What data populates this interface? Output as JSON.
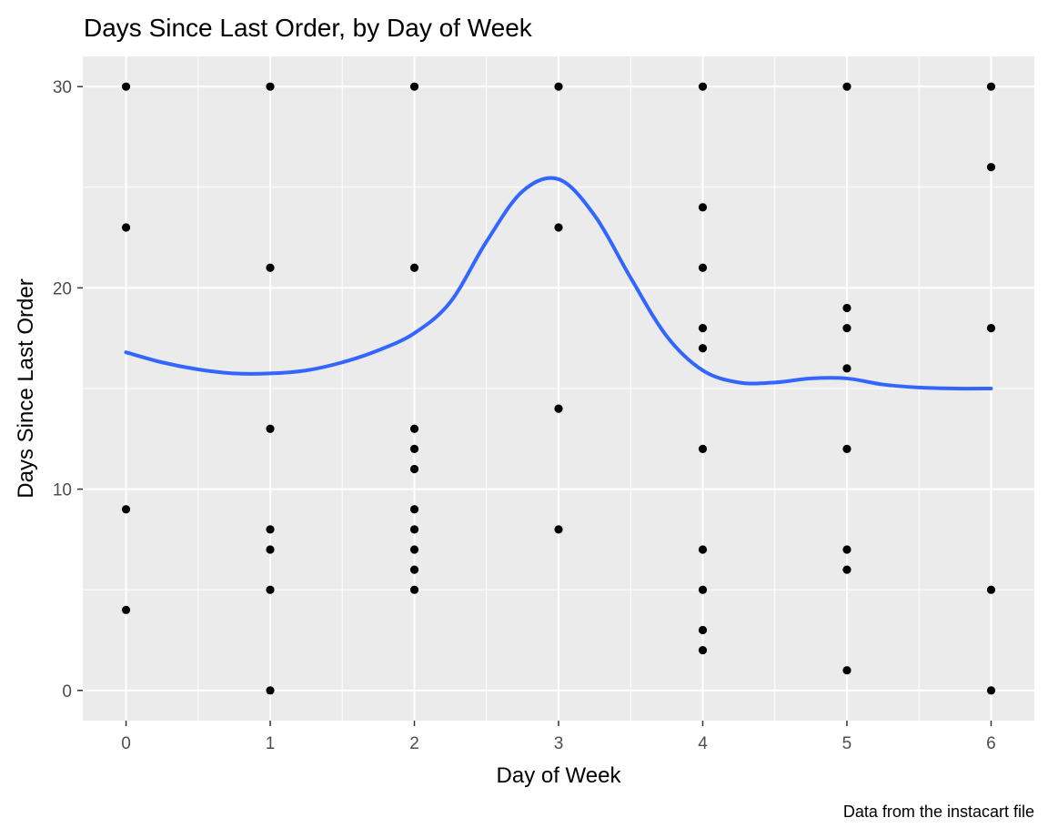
{
  "chart_data": {
    "type": "scatter",
    "title": "Days Since Last Order, by Day of Week",
    "xlabel": "Day of Week",
    "ylabel": "Days Since Last Order",
    "caption": "Data from the instacart file",
    "xlim": [
      -0.3,
      6.3
    ],
    "ylim": [
      -1.5,
      31.5
    ],
    "x_ticks": [
      0,
      1,
      2,
      3,
      4,
      5,
      6
    ],
    "y_ticks": [
      0,
      10,
      20,
      30
    ],
    "grid": true,
    "legend": "none",
    "colors": {
      "panel_background": "#ebebeb",
      "gridline": "#ffffff",
      "point": "#000000",
      "smooth_line": "#3366ff"
    },
    "points": [
      {
        "x": 0,
        "y": 30
      },
      {
        "x": 0,
        "y": 23
      },
      {
        "x": 0,
        "y": 9
      },
      {
        "x": 0,
        "y": 4
      },
      {
        "x": 1,
        "y": 30
      },
      {
        "x": 1,
        "y": 21
      },
      {
        "x": 1,
        "y": 13
      },
      {
        "x": 1,
        "y": 8
      },
      {
        "x": 1,
        "y": 7
      },
      {
        "x": 1,
        "y": 5
      },
      {
        "x": 1,
        "y": 0
      },
      {
        "x": 2,
        "y": 30
      },
      {
        "x": 2,
        "y": 21
      },
      {
        "x": 2,
        "y": 13
      },
      {
        "x": 2,
        "y": 12
      },
      {
        "x": 2,
        "y": 11
      },
      {
        "x": 2,
        "y": 9
      },
      {
        "x": 2,
        "y": 8
      },
      {
        "x": 2,
        "y": 7
      },
      {
        "x": 2,
        "y": 6
      },
      {
        "x": 2,
        "y": 5
      },
      {
        "x": 3,
        "y": 30
      },
      {
        "x": 3,
        "y": 23
      },
      {
        "x": 3,
        "y": 14
      },
      {
        "x": 3,
        "y": 8
      },
      {
        "x": 4,
        "y": 30
      },
      {
        "x": 4,
        "y": 24
      },
      {
        "x": 4,
        "y": 21
      },
      {
        "x": 4,
        "y": 18
      },
      {
        "x": 4,
        "y": 17
      },
      {
        "x": 4,
        "y": 12
      },
      {
        "x": 4,
        "y": 7
      },
      {
        "x": 4,
        "y": 5
      },
      {
        "x": 4,
        "y": 3
      },
      {
        "x": 4,
        "y": 2
      },
      {
        "x": 5,
        "y": 30
      },
      {
        "x": 5,
        "y": 19
      },
      {
        "x": 5,
        "y": 18
      },
      {
        "x": 5,
        "y": 16
      },
      {
        "x": 5,
        "y": 12
      },
      {
        "x": 5,
        "y": 7
      },
      {
        "x": 5,
        "y": 6
      },
      {
        "x": 5,
        "y": 1
      },
      {
        "x": 6,
        "y": 30
      },
      {
        "x": 6,
        "y": 26
      },
      {
        "x": 6,
        "y": 18
      },
      {
        "x": 6,
        "y": 5
      },
      {
        "x": 6,
        "y": 0
      }
    ],
    "smooth_series": {
      "x": [
        0,
        0.25,
        0.5,
        0.75,
        1,
        1.25,
        1.5,
        1.75,
        2,
        2.25,
        2.5,
        2.75,
        3,
        3.25,
        3.5,
        3.75,
        4,
        4.25,
        4.5,
        4.75,
        5,
        5.25,
        5.5,
        5.75,
        6
      ],
      "y": [
        16.8,
        16.3,
        15.95,
        15.75,
        15.75,
        15.9,
        16.3,
        16.9,
        17.75,
        19.3,
        22.3,
        24.8,
        25.4,
        23.6,
        20.5,
        17.6,
        15.9,
        15.3,
        15.3,
        15.5,
        15.5,
        15.2,
        15.05,
        15.0,
        15.0
      ]
    }
  }
}
